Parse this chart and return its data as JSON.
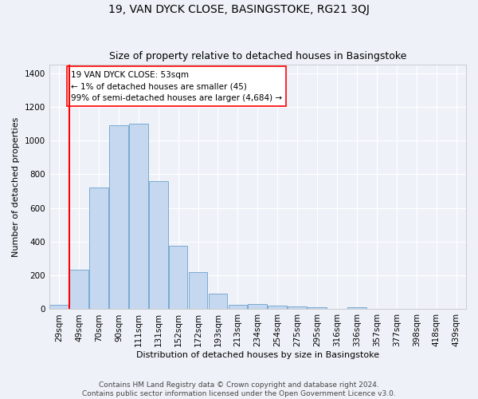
{
  "title": "19, VAN DYCK CLOSE, BASINGSTOKE, RG21 3QJ",
  "subtitle": "Size of property relative to detached houses in Basingstoke",
  "xlabel": "Distribution of detached houses by size in Basingstoke",
  "ylabel": "Number of detached properties",
  "categories": [
    "29sqm",
    "49sqm",
    "70sqm",
    "90sqm",
    "111sqm",
    "131sqm",
    "152sqm",
    "172sqm",
    "193sqm",
    "213sqm",
    "234sqm",
    "254sqm",
    "275sqm",
    "295sqm",
    "316sqm",
    "336sqm",
    "357sqm",
    "377sqm",
    "398sqm",
    "418sqm",
    "439sqm"
  ],
  "values": [
    25,
    235,
    720,
    1090,
    1100,
    760,
    375,
    220,
    90,
    25,
    30,
    20,
    18,
    10,
    0,
    10,
    0,
    0,
    0,
    0,
    0
  ],
  "bar_color": "#c5d8f0",
  "bar_edge_color": "#7aaad0",
  "ylim": [
    0,
    1450
  ],
  "yticks": [
    0,
    200,
    400,
    600,
    800,
    1000,
    1200,
    1400
  ],
  "vline_x_index": 1,
  "annotation_text_line1": "19 VAN DYCK CLOSE: 53sqm",
  "annotation_text_line2": "← 1% of detached houses are smaller (45)",
  "annotation_text_line3": "99% of semi-detached houses are larger (4,684) →",
  "footer_line1": "Contains HM Land Registry data © Crown copyright and database right 2024.",
  "footer_line2": "Contains public sector information licensed under the Open Government Licence v3.0.",
  "bg_color": "#eef2f8",
  "plot_bg_color": "#eef2f8",
  "grid_color": "#ffffff",
  "title_fontsize": 10,
  "subtitle_fontsize": 9,
  "axis_label_fontsize": 8,
  "tick_fontsize": 7.5,
  "annotation_fontsize": 7.5,
  "footer_fontsize": 6.5
}
